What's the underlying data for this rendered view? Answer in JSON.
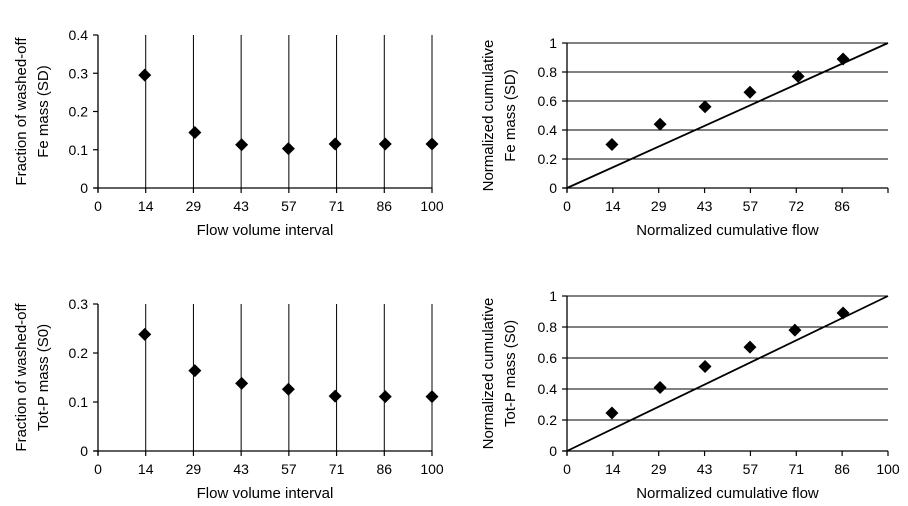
{
  "chart_data": [
    {
      "type": "scatter",
      "xlabel": "Flow volume interval",
      "ylabel": [
        "Fraction of washed-off",
        "Fe mass (SD)"
      ],
      "x_ticks": [
        "0",
        "14",
        "29",
        "43",
        "57",
        "71",
        "86",
        "100"
      ],
      "y_ticks": [
        "0",
        "0.1",
        "0.2",
        "0.3",
        "0.4"
      ],
      "xlim": [
        0,
        100
      ],
      "ylim": [
        0,
        0.4
      ],
      "grid": "vertical",
      "x": [
        14,
        29,
        43,
        57,
        71,
        86,
        100
      ],
      "y": [
        0.295,
        0.145,
        0.113,
        0.103,
        0.115,
        0.115,
        0.115
      ]
    },
    {
      "type": "scatter",
      "xlabel": "Normalized cumulative flow",
      "ylabel": [
        "Normalized cumulative",
        "Fe mass (SD)"
      ],
      "x_ticks": [
        "0",
        "14",
        "29",
        "43",
        "57",
        "72",
        "86",
        ""
      ],
      "y_ticks": [
        "0",
        "0.2",
        "0.4",
        "0.6",
        "0.8",
        "1"
      ],
      "xlim": [
        0,
        100
      ],
      "ylim": [
        0,
        1
      ],
      "grid": "horizontal",
      "x": [
        14,
        29,
        43,
        57,
        72,
        86
      ],
      "y": [
        0.3,
        0.44,
        0.56,
        0.66,
        0.77,
        0.89
      ],
      "reference_line": [
        [
          0,
          0
        ],
        [
          100,
          1
        ]
      ]
    },
    {
      "type": "scatter",
      "xlabel": "Flow volume interval",
      "ylabel": [
        "Fraction of washed-off",
        "Tot-P mass (S0)"
      ],
      "x_ticks": [
        "0",
        "14",
        "29",
        "43",
        "57",
        "71",
        "86",
        "100"
      ],
      "y_ticks": [
        "0",
        "0.1",
        "0.2",
        "0.3"
      ],
      "xlim": [
        0,
        100
      ],
      "ylim": [
        0,
        0.3
      ],
      "grid": "vertical",
      "x": [
        14,
        29,
        43,
        57,
        71,
        86,
        100
      ],
      "y": [
        0.238,
        0.164,
        0.138,
        0.126,
        0.112,
        0.111,
        0.111
      ]
    },
    {
      "type": "scatter",
      "xlabel": "Normalized cumulative flow",
      "ylabel": [
        "Normalized cumulative",
        "Tot-P mass (S0)"
      ],
      "x_ticks": [
        "0",
        "14",
        "29",
        "43",
        "57",
        "71",
        "86",
        "100"
      ],
      "y_ticks": [
        "0",
        "0.2",
        "0.4",
        "0.6",
        "0.8",
        "1"
      ],
      "xlim": [
        0,
        100
      ],
      "ylim": [
        0,
        1
      ],
      "grid": "horizontal",
      "x": [
        14,
        29,
        43,
        57,
        71,
        86
      ],
      "y": [
        0.245,
        0.41,
        0.545,
        0.67,
        0.78,
        0.89
      ],
      "reference_line": [
        [
          0,
          0
        ],
        [
          100,
          1
        ]
      ]
    }
  ]
}
